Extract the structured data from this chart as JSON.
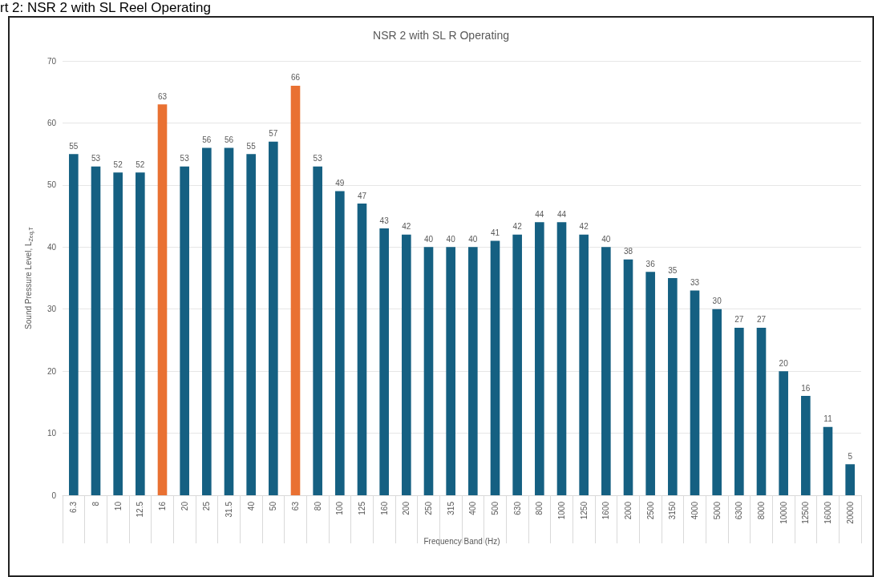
{
  "chart_data": {
    "type": "bar",
    "title": "NSR 2 with SL R Operating",
    "xlabel": "Frequency Band (Hz)",
    "ylabel": "Sound Pressure Level, L$_{Zeq,T}$",
    "annotations": [
      "rt 2: NSR 2 with SL Reel Operating"
    ],
    "categories": [
      "6.3",
      "8",
      "10",
      "12.5",
      "16",
      "20",
      "25",
      "31.5",
      "40",
      "50",
      "63",
      "80",
      "100",
      "125",
      "160",
      "200",
      "250",
      "315",
      "400",
      "500",
      "630",
      "800",
      "1000",
      "1250",
      "1600",
      "2000",
      "2500",
      "3150",
      "4000",
      "5000",
      "6300",
      "8000",
      "10000",
      "12500",
      "16000",
      "20000"
    ],
    "values": [
      55,
      53,
      52,
      52,
      63,
      53,
      56,
      56,
      55,
      57,
      66,
      53,
      49,
      47,
      43,
      42,
      40,
      40,
      40,
      41,
      42,
      44,
      44,
      42,
      40,
      38,
      36,
      35,
      33,
      30,
      27,
      27,
      20,
      16,
      11,
      5
    ],
    "colors": [
      "#156082",
      "#156082",
      "#156082",
      "#156082",
      "#e97132",
      "#156082",
      "#156082",
      "#156082",
      "#156082",
      "#156082",
      "#e97132",
      "#156082",
      "#156082",
      "#156082",
      "#156082",
      "#156082",
      "#156082",
      "#156082",
      "#156082",
      "#156082",
      "#156082",
      "#156082",
      "#156082",
      "#156082",
      "#156082",
      "#156082",
      "#156082",
      "#156082",
      "#156082",
      "#156082",
      "#156082",
      "#156082",
      "#156082",
      "#156082",
      "#156082",
      "#156082"
    ],
    "ylim": [
      0,
      70
    ],
    "yticks": [
      0,
      10,
      20,
      30,
      40,
      50,
      60,
      70
    ],
    "grid": "y",
    "data_labels": true
  }
}
